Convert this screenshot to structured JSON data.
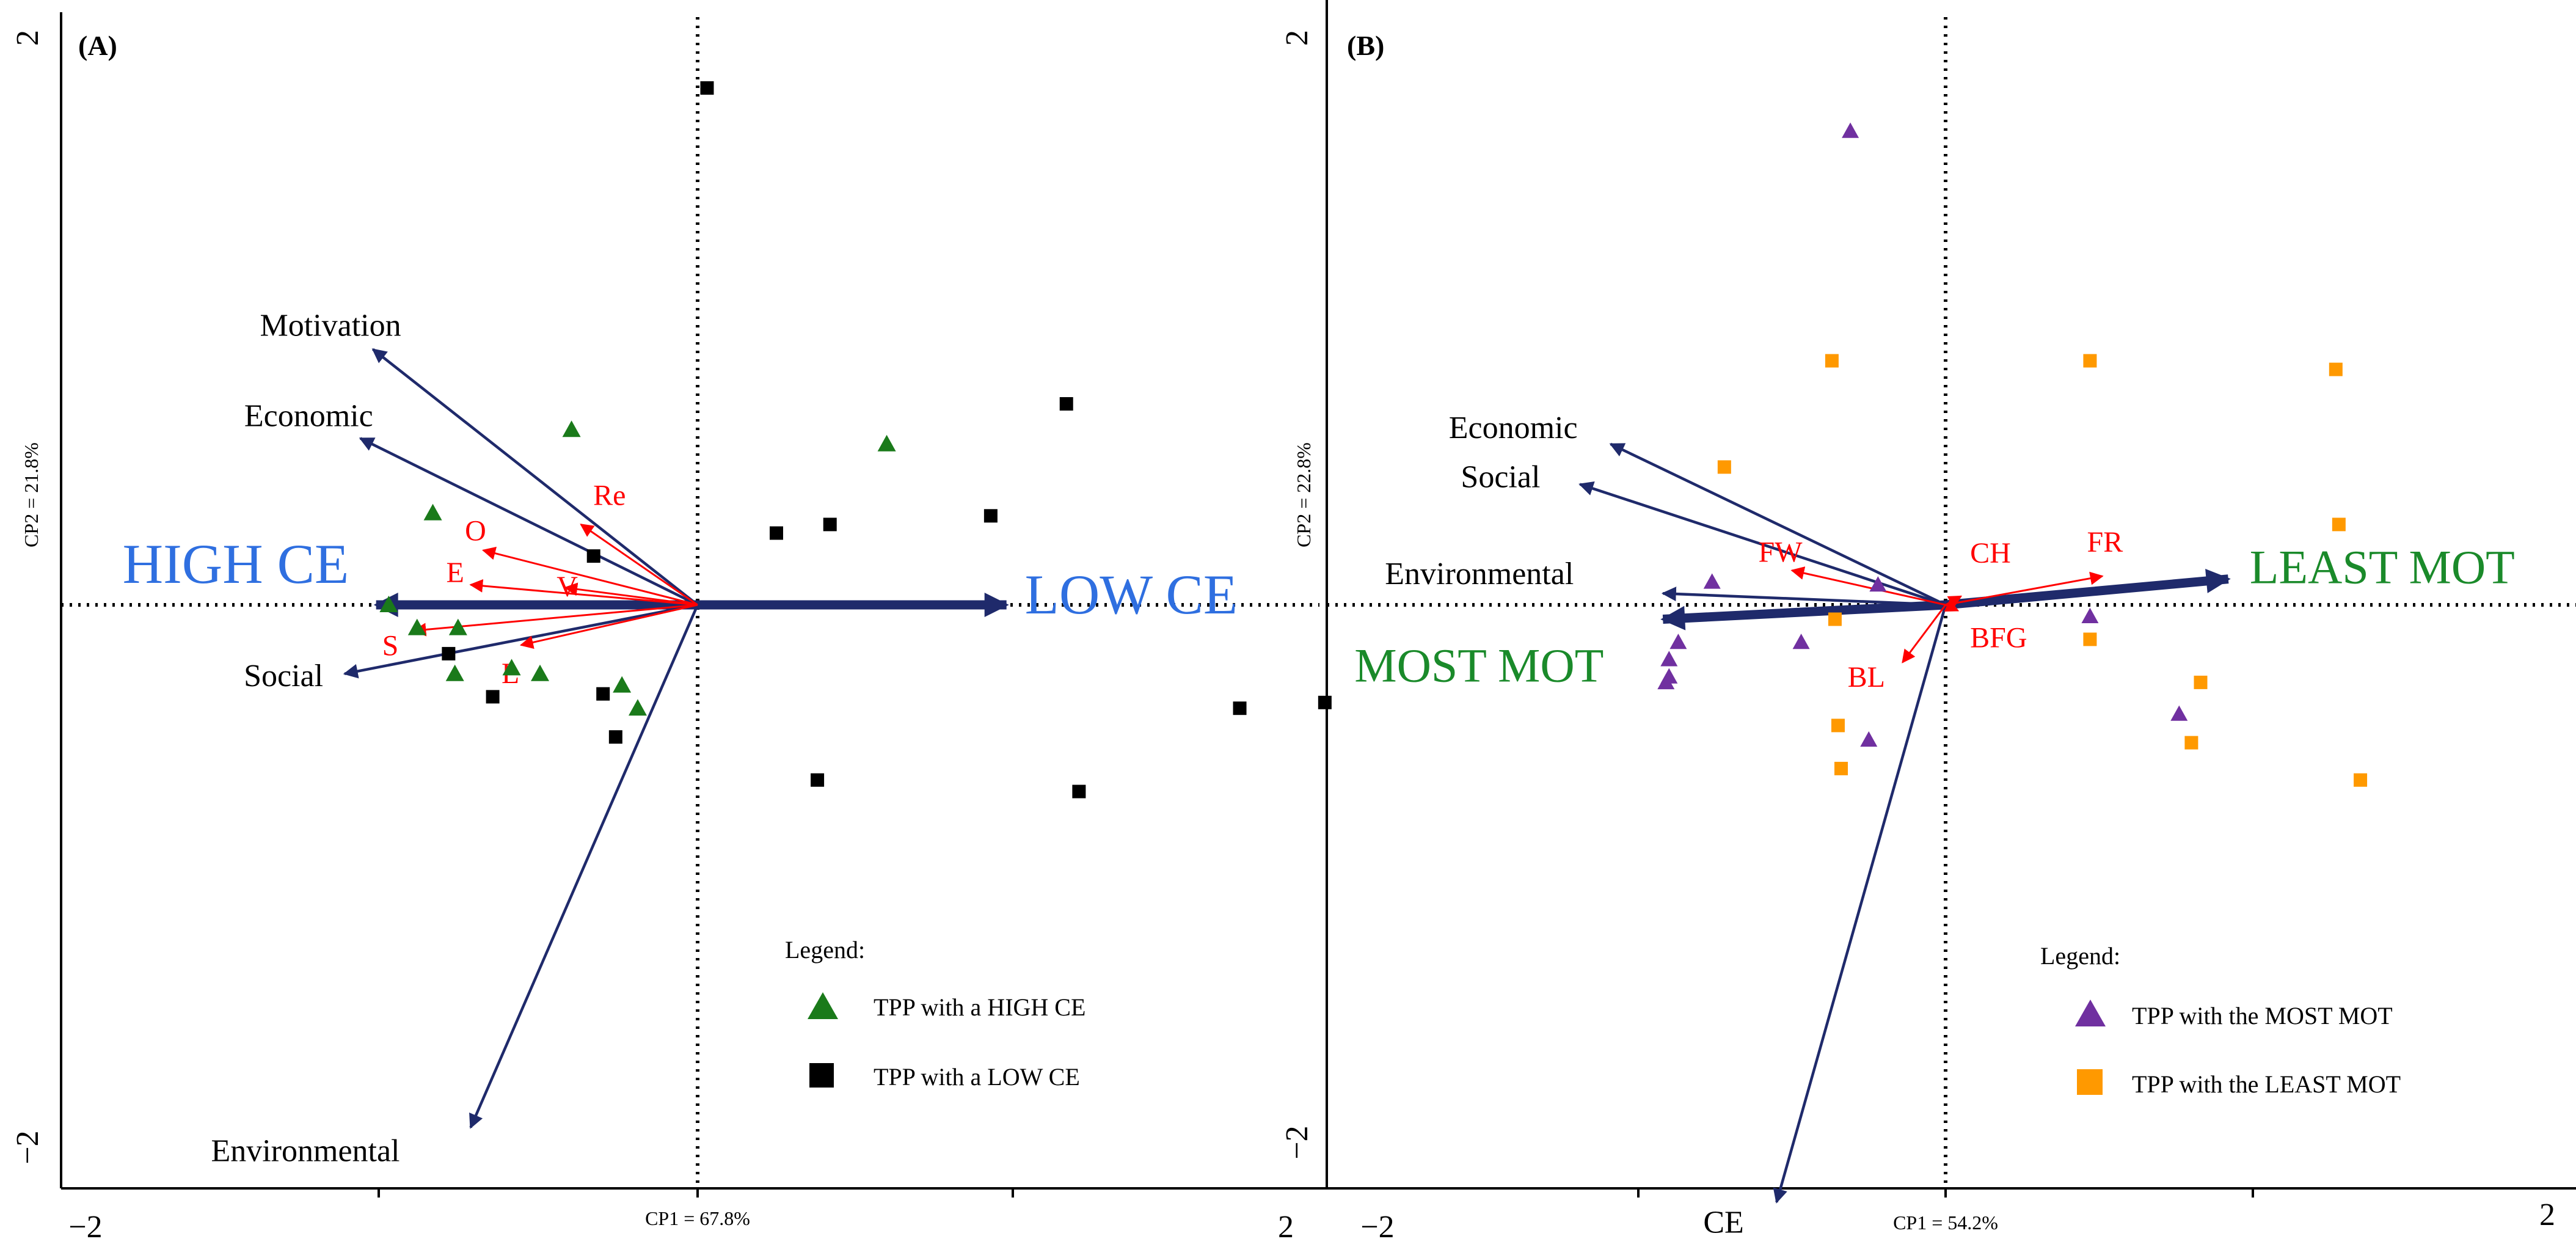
{
  "colors": {
    "navy": "#1f2a6b",
    "red": "#ff0000",
    "blue_label": "#2f6fe0",
    "green_label": "#1a8a2a",
    "green_marker": "#1a7a1a",
    "black_marker": "#000000",
    "purple_marker": "#7030a0",
    "orange_marker": "#ff9900"
  },
  "chart_data": [
    {
      "type": "scatter",
      "panel_label": "(A)",
      "xlabel": "CP1 = 67.8%",
      "ylabel": "CP2 = 21.8%",
      "xlim": [
        -2,
        2
      ],
      "ylim": [
        -2,
        2
      ],
      "x_ticks": [
        "−2",
        "2"
      ],
      "y_ticks": [
        "2",
        "−2"
      ],
      "reference_lines": {
        "x": 0,
        "y": 0,
        "style": "dotted"
      },
      "variable_vectors": [
        {
          "name": "Motivation",
          "x": -1.03,
          "y": 0.89
        },
        {
          "name": "Economic",
          "x": -1.07,
          "y": 0.58
        },
        {
          "name": "Social",
          "x": -1.12,
          "y": -0.24
        },
        {
          "name": "Environmental",
          "x": -0.72,
          "y": -1.82
        }
      ],
      "supplementary_vectors": [
        {
          "name": "Re",
          "x": -0.37,
          "y": 0.28
        },
        {
          "name": "O",
          "x": -0.68,
          "y": 0.19
        },
        {
          "name": "E",
          "x": -0.72,
          "y": 0.07
        },
        {
          "name": "V",
          "x": -0.42,
          "y": 0.06
        },
        {
          "name": "S",
          "x": -0.9,
          "y": -0.09
        },
        {
          "name": "L",
          "x": -0.56,
          "y": -0.14
        }
      ],
      "group_axis": [
        {
          "name": "HIGH CE",
          "x": -1.02,
          "y": 0
        },
        {
          "name": "LOW CE",
          "x": 0.98,
          "y": 0
        }
      ],
      "series": [
        {
          "name": "TPP with a HIGH CE",
          "marker": "triangle",
          "points": [
            [
              -0.4,
              0.61
            ],
            [
              -0.84,
              0.32
            ],
            [
              -0.98,
              0.0
            ],
            [
              -0.89,
              -0.08
            ],
            [
              -0.76,
              -0.08
            ],
            [
              -0.77,
              -0.24
            ],
            [
              -0.59,
              -0.22
            ],
            [
              -0.5,
              -0.24
            ],
            [
              -0.24,
              -0.28
            ],
            [
              -0.19,
              -0.36
            ],
            [
              0.6,
              0.56
            ]
          ]
        },
        {
          "name": "TPP with a LOW CE",
          "marker": "square",
          "points": [
            [
              0.03,
              1.8
            ],
            [
              -0.33,
              0.17
            ],
            [
              -0.79,
              -0.17
            ],
            [
              -0.65,
              -0.32
            ],
            [
              -0.3,
              -0.31
            ],
            [
              -0.26,
              -0.46
            ],
            [
              0.25,
              0.25
            ],
            [
              0.42,
              0.28
            ],
            [
              0.93,
              0.31
            ],
            [
              1.17,
              0.7
            ],
            [
              0.38,
              -0.61
            ],
            [
              1.21,
              -0.65
            ],
            [
              1.72,
              -0.36
            ],
            [
              1.99,
              -0.34
            ]
          ]
        }
      ],
      "legend": {
        "title": "Legend:",
        "placement": "bottom-right"
      }
    },
    {
      "type": "scatter",
      "panel_label": "(B)",
      "xlabel": "CP1 = 54.2%",
      "ylabel": "CP2 = 22.8%",
      "xlim": [
        -2,
        2
      ],
      "ylim": [
        -2,
        2
      ],
      "x_ticks": [
        "−2",
        "2"
      ],
      "y_ticks": [
        "2",
        "−2"
      ],
      "reference_lines": {
        "x": 0,
        "y": 0,
        "style": "dotted"
      },
      "variable_vectors": [
        {
          "name": "Economic",
          "x": -1.09,
          "y": 0.56
        },
        {
          "name": "Social",
          "x": -1.19,
          "y": 0.42
        },
        {
          "name": "Environmental",
          "x": -0.92,
          "y": 0.04
        },
        {
          "name": "CE",
          "x": -0.55,
          "y": -2.08
        }
      ],
      "supplementary_vectors": [
        {
          "name": "FW",
          "x": -0.5,
          "y": 0.12
        },
        {
          "name": "CH",
          "x": 0.05,
          "y": 0.03
        },
        {
          "name": "FR",
          "x": 0.51,
          "y": 0.1
        },
        {
          "name": "BFG",
          "x": 0.04,
          "y": -0.02
        },
        {
          "name": "BL",
          "x": -0.14,
          "y": -0.2
        }
      ],
      "group_axis": [
        {
          "name": "MOST MOT",
          "x": -0.92,
          "y": -0.05
        },
        {
          "name": "LEAST MOT",
          "x": 0.92,
          "y": 0.09
        }
      ],
      "series": [
        {
          "name": "TPP with the MOST MOT",
          "marker": "triangle",
          "points": [
            [
              -0.31,
              1.65
            ],
            [
              -0.76,
              0.08
            ],
            [
              -0.22,
              0.07
            ],
            [
              -0.87,
              -0.13
            ],
            [
              -0.9,
              -0.19
            ],
            [
              -0.91,
              -0.27
            ],
            [
              -0.47,
              -0.13
            ],
            [
              -0.25,
              -0.47
            ],
            [
              0.47,
              -0.04
            ],
            [
              0.76,
              -0.38
            ],
            [
              -0.9,
              -0.25
            ]
          ]
        },
        {
          "name": "TPP with the LEAST MOT",
          "marker": "square",
          "points": [
            [
              -0.37,
              0.85
            ],
            [
              -0.72,
              0.48
            ],
            [
              -0.36,
              -0.05
            ],
            [
              -0.35,
              -0.42
            ],
            [
              -0.34,
              -0.57
            ],
            [
              0.47,
              0.85
            ],
            [
              0.47,
              -0.12
            ],
            [
              0.83,
              -0.27
            ],
            [
              0.8,
              -0.48
            ],
            [
              1.27,
              0.82
            ],
            [
              1.28,
              0.28
            ],
            [
              1.35,
              -0.61
            ]
          ]
        }
      ],
      "legend": {
        "title": "Legend:",
        "placement": "bottom-right"
      }
    }
  ]
}
